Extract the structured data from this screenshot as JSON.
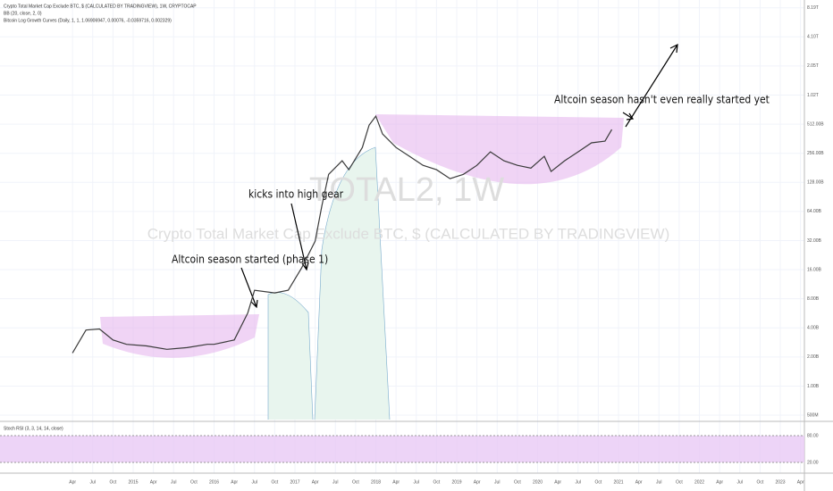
{
  "header": {
    "symbol": "Crypto Total Market Cap Exclude BTC, $ (CALCULATED BY TRADINGVIEW), 1W, CRYPTOCAP",
    "bb": "BB (20, close, 2, 0)",
    "curves": "Bitcoin Log Growth Curves (Daily, 1, 1, 1.06906947, 0.00076, -0.0359716, 0.002329)"
  },
  "watermark": {
    "title": "TOTAL2, 1W",
    "subtitle": "Crypto Total Market Cap Exclude BTC, $ (CALCULATED BY TRADINGVIEW)"
  },
  "annotations": [
    "Altcoin season hasn't even really started yet",
    "kicks into high gear",
    "Altcoin season started (phase 1)"
  ],
  "chart_data": {
    "type": "line",
    "log_scale": true,
    "color": "#3a3a3a",
    "x": [
      "2014-04",
      "2014-06",
      "2014-08",
      "2014-10",
      "2014-12",
      "2015-03",
      "2015-06",
      "2015-09",
      "2015-12",
      "2016-01",
      "2016-04",
      "2016-06",
      "2016-07",
      "2016-10",
      "2016-12",
      "2017-02",
      "2017-04",
      "2017-05",
      "2017-06",
      "2017-08",
      "2017-09",
      "2017-11",
      "2017-12",
      "2018-01",
      "2018-02",
      "2018-04",
      "2018-06",
      "2018-08",
      "2018-10",
      "2018-12",
      "2019-02",
      "2019-04",
      "2019-06",
      "2019-08",
      "2019-10",
      "2019-12",
      "2020-02",
      "2020-03",
      "2020-05",
      "2020-07",
      "2020-09",
      "2020-11",
      "2020-12"
    ],
    "values": [
      2.2,
      3.8,
      3.9,
      3.0,
      2.7,
      2.6,
      2.4,
      2.5,
      2.7,
      2.7,
      3.0,
      5.7,
      9.8,
      9.2,
      9.8,
      16.7,
      31.5,
      74,
      155,
      214,
      173,
      294,
      501,
      620,
      405,
      294,
      238,
      192,
      173,
      140,
      155,
      192,
      265,
      214,
      192,
      180,
      238,
      166,
      214,
      265,
      328,
      342,
      451
    ],
    "ylim": [
      0.45,
      9860
    ],
    "yticks": [
      {
        "value": 0.5,
        "label": "500M"
      },
      {
        "value": 1,
        "label": "1.00B"
      },
      {
        "value": 2,
        "label": "2.00B"
      },
      {
        "value": 4,
        "label": "4.00B"
      },
      {
        "value": 8,
        "label": "8.00B"
      },
      {
        "value": 16,
        "label": "16.00B"
      },
      {
        "value": 32,
        "label": "32.00B"
      },
      {
        "value": 64,
        "label": "64.00B"
      },
      {
        "value": 128,
        "label": "128.00B"
      },
      {
        "value": 256,
        "label": "256.00B"
      },
      {
        "value": 512,
        "label": "512.00B"
      },
      {
        "value": 1024,
        "label": "1.02T"
      },
      {
        "value": 2048,
        "label": "2.05T"
      },
      {
        "value": 4096,
        "label": "4.10T"
      },
      {
        "value": 8192,
        "label": "8.19T"
      }
    ],
    "xticks": [
      {
        "value": "2014-04",
        "label": "Apr"
      },
      {
        "value": "2014-07",
        "label": "Jul"
      },
      {
        "value": "2014-10",
        "label": "Oct"
      },
      {
        "value": "2015-01",
        "label": "2015"
      },
      {
        "value": "2015-04",
        "label": "Apr"
      },
      {
        "value": "2015-07",
        "label": "Jul"
      },
      {
        "value": "2015-10",
        "label": "Oct"
      },
      {
        "value": "2016-01",
        "label": "2016"
      },
      {
        "value": "2016-04",
        "label": "Apr"
      },
      {
        "value": "2016-07",
        "label": "Jul"
      },
      {
        "value": "2016-10",
        "label": "Oct"
      },
      {
        "value": "2017-01",
        "label": "2017"
      },
      {
        "value": "2017-04",
        "label": "Apr"
      },
      {
        "value": "2017-07",
        "label": "Jul"
      },
      {
        "value": "2017-10",
        "label": "Oct"
      },
      {
        "value": "2018-01",
        "label": "2018"
      },
      {
        "value": "2018-04",
        "label": "Apr"
      },
      {
        "value": "2018-07",
        "label": "Jul"
      },
      {
        "value": "2018-10",
        "label": "Oct"
      },
      {
        "value": "2019-01",
        "label": "2019"
      },
      {
        "value": "2019-04",
        "label": "Apr"
      },
      {
        "value": "2019-07",
        "label": "Jul"
      },
      {
        "value": "2019-10",
        "label": "Oct"
      },
      {
        "value": "2020-01",
        "label": "2020"
      },
      {
        "value": "2020-04",
        "label": "Apr"
      },
      {
        "value": "2020-07",
        "label": "Jul"
      },
      {
        "value": "2020-10",
        "label": "Oct"
      },
      {
        "value": "2021-01",
        "label": "2021"
      },
      {
        "value": "2021-04",
        "label": "Apr"
      },
      {
        "value": "2021-07",
        "label": "Jul"
      },
      {
        "value": "2021-10",
        "label": "Oct"
      },
      {
        "value": "2022-01",
        "label": "2022"
      },
      {
        "value": "2022-04",
        "label": "Apr"
      },
      {
        "value": "2022-07",
        "label": "Jul"
      },
      {
        "value": "2022-10",
        "label": "Oct"
      },
      {
        "value": "2023-01",
        "label": "2023"
      },
      {
        "value": "2023-04",
        "label": "Apr"
      }
    ],
    "grid": true
  },
  "stoch": {
    "title": "Stoch RSI (3, 3, 14, 14, close)",
    "ylim": [
      0,
      100
    ],
    "yticks": [
      {
        "value": 20,
        "label": "20.00"
      },
      {
        "value": 80,
        "label": "80.00"
      }
    ]
  }
}
